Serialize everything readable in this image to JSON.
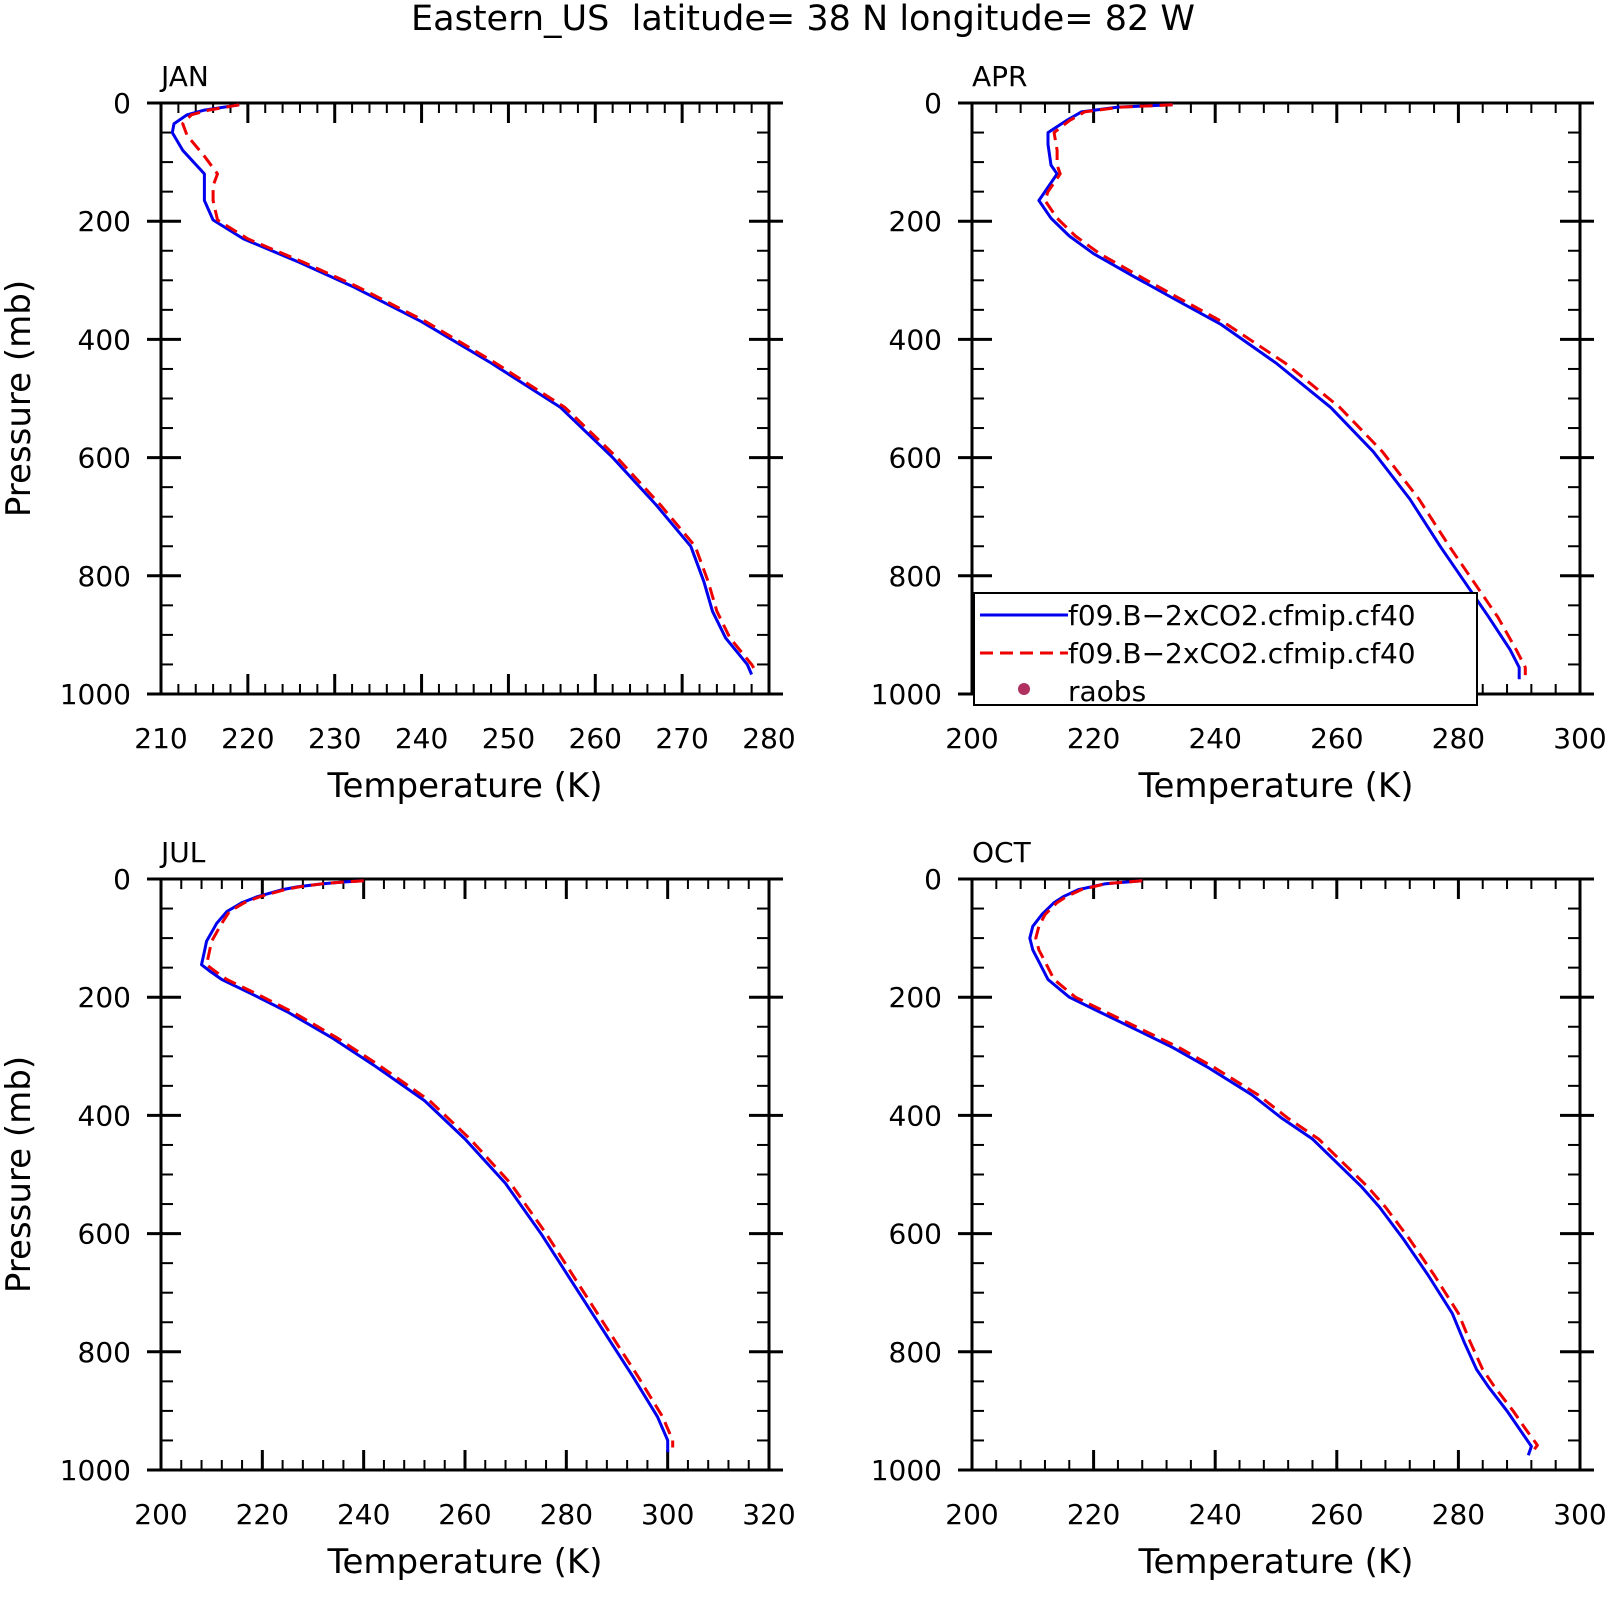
{
  "title": "Eastern_US  latitude= 38 N longitude= 82 W",
  "chart_data": [
    {
      "type": "line",
      "title": "JAN",
      "xlabel": "Temperature (K)",
      "ylabel": "Pressure (mb)",
      "xlim": [
        210,
        280
      ],
      "ylim": [
        0,
        1000
      ],
      "y_inverted": true,
      "xticks": [
        "210",
        "220",
        "230",
        "240",
        "250",
        "260",
        "270",
        "280"
      ],
      "yticks": [
        "0",
        "200",
        "400",
        "600",
        "800",
        "1000"
      ],
      "series": [
        {
          "style": "solid",
          "color": "#0000ee",
          "points": [
            [
              219,
              3
            ],
            [
              215,
              12
            ],
            [
              213,
              20
            ],
            [
              211.5,
              35
            ],
            [
              211.3,
              50
            ],
            [
              212.5,
              80
            ],
            [
              215,
              120
            ],
            [
              215,
              140
            ],
            [
              215,
              165
            ],
            [
              216,
              198
            ],
            [
              219.5,
              230
            ],
            [
              226,
              270
            ],
            [
              232,
              310
            ],
            [
              240,
              370
            ],
            [
              248,
              440
            ],
            [
              256,
              515
            ],
            [
              262,
              600
            ],
            [
              267,
              680
            ],
            [
              271,
              750
            ],
            [
              272.5,
              810
            ],
            [
              273.5,
              860
            ],
            [
              275,
              905
            ],
            [
              277.5,
              950
            ],
            [
              278,
              967
            ]
          ]
        },
        {
          "style": "dashed",
          "color": "#ee0000",
          "points": [
            [
              219,
              3
            ],
            [
              215.5,
              12
            ],
            [
              213.5,
              20
            ],
            [
              212.5,
              35
            ],
            [
              213,
              55
            ],
            [
              215,
              90
            ],
            [
              216.5,
              120
            ],
            [
              216,
              140
            ],
            [
              216,
              165
            ],
            [
              216.5,
              198
            ],
            [
              220,
              230
            ],
            [
              226.5,
              270
            ],
            [
              232.5,
              310
            ],
            [
              240.5,
              370
            ],
            [
              248.5,
              440
            ],
            [
              256.5,
              515
            ],
            [
              262.5,
              600
            ],
            [
              267.5,
              680
            ],
            [
              271.5,
              750
            ],
            [
              273,
              810
            ],
            [
              274,
              860
            ],
            [
              275.5,
              905
            ],
            [
              278,
              950
            ],
            [
              278.5,
              962
            ]
          ]
        }
      ]
    },
    {
      "type": "line",
      "title": "APR",
      "xlabel": "Temperature (K)",
      "xlim": [
        200,
        300
      ],
      "ylim": [
        0,
        1000
      ],
      "y_inverted": true,
      "xticks": [
        "200",
        "220",
        "240",
        "260",
        "280",
        "300"
      ],
      "yticks": [
        "0",
        "200",
        "400",
        "600",
        "800",
        "1000"
      ],
      "legend": {
        "placement": "bottom-left",
        "entries": [
          {
            "label": "f09.B−2xCO2.cfmip.cf40",
            "style": "solid",
            "color": "#0000ee"
          },
          {
            "label": "f09.B−2xCO2.cfmip.cf40",
            "style": "dashed",
            "color": "#ee0000"
          },
          {
            "label": "raobs",
            "style": "marker",
            "color": "#b03060"
          }
        ]
      },
      "series": [
        {
          "style": "solid",
          "color": "#0000ee",
          "points": [
            [
              233,
              3
            ],
            [
              224,
              7
            ],
            [
              218,
              15
            ],
            [
              215.5,
              30
            ],
            [
              212.5,
              50
            ],
            [
              212.5,
              70
            ],
            [
              213,
              105
            ],
            [
              214,
              120
            ],
            [
              212,
              150
            ],
            [
              211,
              165
            ],
            [
              213,
              195
            ],
            [
              216,
              225
            ],
            [
              220,
              255
            ],
            [
              226,
              290
            ],
            [
              233,
              330
            ],
            [
              241,
              375
            ],
            [
              250,
              440
            ],
            [
              259,
              515
            ],
            [
              266,
              590
            ],
            [
              272,
              670
            ],
            [
              277,
              750
            ],
            [
              281,
              810
            ],
            [
              285,
              870
            ],
            [
              288.5,
              925
            ],
            [
              290,
              955
            ],
            [
              290,
              975
            ]
          ]
        },
        {
          "style": "dashed",
          "color": "#ee0000",
          "points": [
            [
              233,
              3
            ],
            [
              224.5,
              7
            ],
            [
              218.5,
              15
            ],
            [
              216,
              30
            ],
            [
              213.5,
              50
            ],
            [
              214,
              80
            ],
            [
              214,
              105
            ],
            [
              214.5,
              120
            ],
            [
              212.5,
              150
            ],
            [
              212,
              165
            ],
            [
              214,
              195
            ],
            [
              217,
              225
            ],
            [
              221,
              255
            ],
            [
              227,
              290
            ],
            [
              234,
              330
            ],
            [
              242,
              375
            ],
            [
              251.5,
              440
            ],
            [
              260.5,
              515
            ],
            [
              267.5,
              590
            ],
            [
              273.5,
              670
            ],
            [
              278.5,
              750
            ],
            [
              282.5,
              810
            ],
            [
              286.5,
              870
            ],
            [
              289.5,
              925
            ],
            [
              291,
              955
            ],
            [
              291,
              968
            ]
          ]
        }
      ]
    },
    {
      "type": "line",
      "title": "JUL",
      "xlabel": "Temperature (K)",
      "ylabel": "Pressure (mb)",
      "xlim": [
        200,
        320
      ],
      "ylim": [
        0,
        1000
      ],
      "y_inverted": true,
      "xticks": [
        "200",
        "220",
        "240",
        "260",
        "280",
        "300",
        "320"
      ],
      "yticks": [
        "0",
        "200",
        "400",
        "600",
        "800",
        "1000"
      ],
      "series": [
        {
          "style": "solid",
          "color": "#0000ee",
          "points": [
            [
              240,
              3
            ],
            [
              236,
              5
            ],
            [
              232,
              8
            ],
            [
              227,
              13
            ],
            [
              224,
              18
            ],
            [
              219,
              30
            ],
            [
              216,
              40
            ],
            [
              213,
              55
            ],
            [
              211,
              75
            ],
            [
              210,
              90
            ],
            [
              209,
              105
            ],
            [
              208.5,
              125
            ],
            [
              208,
              145
            ],
            [
              209.5,
              155
            ],
            [
              212,
              170
            ],
            [
              218,
              195
            ],
            [
              225,
              225
            ],
            [
              234,
              270
            ],
            [
              242,
              315
            ],
            [
              252,
              375
            ],
            [
              260,
              440
            ],
            [
              268,
              515
            ],
            [
              275,
              600
            ],
            [
              281,
              680
            ],
            [
              287,
              760
            ],
            [
              293,
              840
            ],
            [
              298,
              910
            ],
            [
              300,
              950
            ],
            [
              300,
              970
            ]
          ]
        },
        {
          "style": "dashed",
          "color": "#ee0000",
          "points": [
            [
              240,
              3
            ],
            [
              236,
              5
            ],
            [
              232,
              8
            ],
            [
              227.5,
              13
            ],
            [
              224.5,
              18
            ],
            [
              219.5,
              30
            ],
            [
              216.5,
              40
            ],
            [
              213.5,
              55
            ],
            [
              212,
              75
            ],
            [
              211,
              90
            ],
            [
              210,
              105
            ],
            [
              209.5,
              125
            ],
            [
              209,
              145
            ],
            [
              210.5,
              155
            ],
            [
              213,
              170
            ],
            [
              219,
              195
            ],
            [
              226,
              225
            ],
            [
              235,
              270
            ],
            [
              243,
              315
            ],
            [
              253,
              375
            ],
            [
              261,
              440
            ],
            [
              269,
              515
            ],
            [
              276,
              600
            ],
            [
              282,
              680
            ],
            [
              288,
              760
            ],
            [
              294,
              840
            ],
            [
              299,
              910
            ],
            [
              301,
              950
            ],
            [
              301,
              962
            ]
          ]
        }
      ]
    },
    {
      "type": "line",
      "title": "OCT",
      "xlabel": "Temperature (K)",
      "xlim": [
        200,
        300
      ],
      "ylim": [
        0,
        1000
      ],
      "y_inverted": true,
      "xticks": [
        "200",
        "220",
        "240",
        "260",
        "280",
        "300"
      ],
      "yticks": [
        "0",
        "200",
        "400",
        "600",
        "800",
        "1000"
      ],
      "series": [
        {
          "style": "solid",
          "color": "#0000ee",
          "points": [
            [
              228,
              3
            ],
            [
              222,
              8
            ],
            [
              217.5,
              18
            ],
            [
              215,
              30
            ],
            [
              213.5,
              40
            ],
            [
              211.5,
              60
            ],
            [
              210,
              80
            ],
            [
              209.5,
              100
            ],
            [
              210,
              120
            ],
            [
              211,
              140
            ],
            [
              212.5,
              170
            ],
            [
              216,
              200
            ],
            [
              221,
              225
            ],
            [
              227,
              255
            ],
            [
              233,
              285
            ],
            [
              239,
              320
            ],
            [
              246,
              365
            ],
            [
              251,
              405
            ],
            [
              256,
              440
            ],
            [
              260,
              480
            ],
            [
              264,
              520
            ],
            [
              267,
              555
            ],
            [
              271,
              610
            ],
            [
              275,
              670
            ],
            [
              279,
              735
            ],
            [
              281,
              785
            ],
            [
              283,
              830
            ],
            [
              285,
              860
            ],
            [
              288,
              900
            ],
            [
              290,
              930
            ],
            [
              292,
              960
            ],
            [
              291.5,
              975
            ]
          ]
        },
        {
          "style": "dashed",
          "color": "#ee0000",
          "points": [
            [
              228,
              3
            ],
            [
              222,
              8
            ],
            [
              218,
              18
            ],
            [
              215.5,
              30
            ],
            [
              214,
              40
            ],
            [
              212,
              60
            ],
            [
              211,
              80
            ],
            [
              210.5,
              100
            ],
            [
              211,
              120
            ],
            [
              212,
              140
            ],
            [
              213.5,
              170
            ],
            [
              217,
              200
            ],
            [
              222,
              225
            ],
            [
              228,
              255
            ],
            [
              234,
              285
            ],
            [
              240,
              320
            ],
            [
              247,
              365
            ],
            [
              252,
              405
            ],
            [
              257,
              440
            ],
            [
              261,
              480
            ],
            [
              265,
              520
            ],
            [
              268,
              555
            ],
            [
              272,
              610
            ],
            [
              276,
              670
            ],
            [
              280,
              735
            ],
            [
              282,
              785
            ],
            [
              284,
              830
            ],
            [
              286,
              860
            ],
            [
              289,
              900
            ],
            [
              291,
              930
            ],
            [
              293,
              958
            ],
            [
              292.5,
              965
            ]
          ]
        }
      ]
    }
  ]
}
